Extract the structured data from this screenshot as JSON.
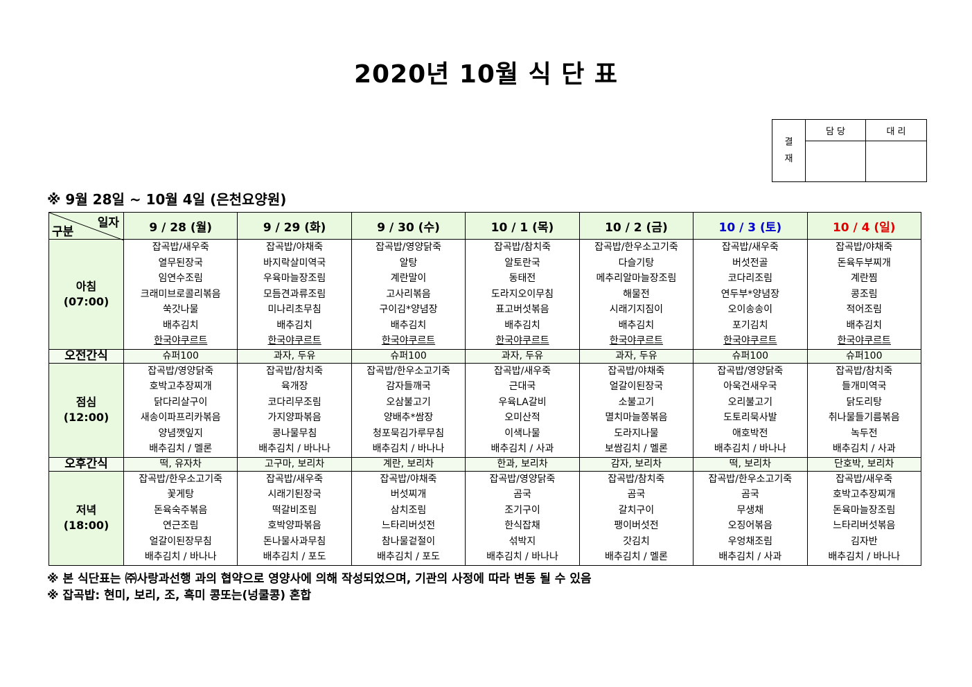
{
  "title": "2020년 10월 식 단 표",
  "approval": {
    "label1": "결",
    "label2": "재",
    "col1": "담 당",
    "col2": "대 리"
  },
  "subtitle": "※ 9월 28일 ~ 10월 4일 (은천요양원)",
  "header": {
    "corner_top": "일자",
    "corner_bottom": "구분"
  },
  "row_labels": {
    "breakfast": "아침",
    "breakfast_time": "(07:00)",
    "am_snack": "오전간식",
    "lunch": "점심",
    "lunch_time": "(12:00)",
    "pm_snack": "오후간식",
    "dinner": "저녁",
    "dinner_time": "(18:00)"
  },
  "colors": {
    "header_bg": "#e9f9df",
    "saturday": "#0000cc",
    "sunday": "#e00000"
  },
  "days": [
    {
      "date": "9 / 28 (월)",
      "type": "weekday",
      "breakfast": [
        "잡곡밥/새우죽",
        "열무된장국",
        "임연수조림",
        "크래미브로콜리볶음",
        "쑥갓나물",
        "배추김치",
        "한국야쿠르트"
      ],
      "am_snack": "슈퍼100",
      "lunch": [
        "잡곡밥/영양닭죽",
        "호박고추장찌개",
        "닭다리살구이",
        "새송이파프리카볶음",
        "양념깻잎지",
        "배추김치 / 멜론"
      ],
      "pm_snack": "떡, 유자차",
      "dinner": [
        "잡곡밥/한우소고기죽",
        "꽃게탕",
        "돈육숙주볶음",
        "연근조림",
        "얼갈이된장무침",
        "배추김치 / 바나나"
      ]
    },
    {
      "date": "9 / 29 (화)",
      "type": "weekday",
      "breakfast": [
        "잡곡밥/야채죽",
        "바지락살미역국",
        "우육마늘장조림",
        "모듬견과류조림",
        "미나리초무침",
        "배추김치",
        "한국야쿠르트"
      ],
      "am_snack": "과자, 두유",
      "lunch": [
        "잡곡밥/참치죽",
        "육개장",
        "코다리무조림",
        "가지양파볶음",
        "콩나물무침",
        "배추김치 / 바나나"
      ],
      "pm_snack": "고구마, 보리차",
      "dinner": [
        "잡곡밥/새우죽",
        "시래기된장국",
        "떡갈비조림",
        "호박양파볶음",
        "돈나물사과무침",
        "배추김치 / 포도"
      ]
    },
    {
      "date": "9 / 30 (수)",
      "type": "weekday",
      "breakfast": [
        "잡곡밥/영양닭죽",
        "알탕",
        "계란말이",
        "고사리볶음",
        "구이김*양념장",
        "배추김치",
        "한국야쿠르트"
      ],
      "am_snack": "슈퍼100",
      "lunch": [
        "잡곡밥/한우소고기죽",
        "감자들깨국",
        "오삼불고기",
        "양배추*쌈장",
        "청포묵김가루무침",
        "배추김치 / 바나나"
      ],
      "pm_snack": "계란, 보리차",
      "dinner": [
        "잡곡밥/야채죽",
        "버섯찌개",
        "삼치조림",
        "느타리버섯전",
        "참나물겉절이",
        "배추김치 / 포도"
      ]
    },
    {
      "date": "10 / 1 (목)",
      "type": "weekday",
      "breakfast": [
        "잡곡밥/참치죽",
        "알토란국",
        "동태전",
        "도라지오이무침",
        "표고버섯볶음",
        "배추김치",
        "한국야쿠르트"
      ],
      "am_snack": "과자, 두유",
      "lunch": [
        "잡곡밥/새우죽",
        "근대국",
        "우육LA갈비",
        "오미산적",
        "이색나물",
        "배추김치 / 사과"
      ],
      "pm_snack": "한과, 보리차",
      "dinner": [
        "잡곡밥/영양닭죽",
        "곰국",
        "조기구이",
        "한식잡채",
        "섞박지",
        "배추김치 / 바나나"
      ]
    },
    {
      "date": "10 / 2 (금)",
      "type": "weekday",
      "breakfast": [
        "잡곡밥/한우소고기죽",
        "다슬기탕",
        "메추리알마늘장조림",
        "해물전",
        "시래기지짐이",
        "배추김치",
        "한국야쿠르트"
      ],
      "am_snack": "과자, 두유",
      "lunch": [
        "잡곡밥/야채죽",
        "얼갈이된장국",
        "소불고기",
        "멸치마늘쫑볶음",
        "도라지나물",
        "보쌈김치 / 멜론"
      ],
      "pm_snack": "감자, 보리차",
      "dinner": [
        "잡곡밥/참치죽",
        "곰국",
        "갈치구이",
        "팽이버섯전",
        "갓김치",
        "배추김치 / 멜론"
      ]
    },
    {
      "date": "10 / 3 (토)",
      "type": "saturday",
      "breakfast": [
        "잡곡밥/새우죽",
        "버섯전골",
        "코다리조림",
        "연두부*양념장",
        "오이송송이",
        "포기김치",
        "한국야쿠르트"
      ],
      "am_snack": "슈퍼100",
      "lunch": [
        "잡곡밥/영양닭죽",
        "아욱건새우국",
        "오리불고기",
        "도토리묵사발",
        "애호박전",
        "배추김치 / 바나나"
      ],
      "pm_snack": "떡, 보리차",
      "dinner": [
        "잡곡밥/한우소고기죽",
        "곰국",
        "무생채",
        "오징어볶음",
        "우엉채조림",
        "배추김치 / 사과"
      ]
    },
    {
      "date": "10 / 4 (일)",
      "type": "sunday",
      "breakfast": [
        "잡곡밥/야채죽",
        "돈육두부찌개",
        "계란찜",
        "콩조림",
        "적어조림",
        "배추김치",
        "한국야쿠르트"
      ],
      "am_snack": "슈퍼100",
      "lunch": [
        "잡곡밥/참치죽",
        "들개미역국",
        "닭도리탕",
        "취나물들기름볶음",
        "녹두전",
        "배추김치 / 사과"
      ],
      "pm_snack": "단호박, 보리차",
      "dinner": [
        "잡곡밥/새우죽",
        "호박고추장찌개",
        "돈육마늘장조림",
        "느타리버섯볶음",
        "김자반",
        "배추김치 / 바나나"
      ]
    }
  ],
  "notes": [
    "※ 본 식단표는 ㈜사랑과선행 과의 협약으로 영양사에 의해 작성되었으며, 기관의 사정에 따라 변동 될 수 있음",
    "※ 잡곡밥: 현미, 보리, 조, 흑미 콩또는(넝쿨콩) 혼합"
  ]
}
